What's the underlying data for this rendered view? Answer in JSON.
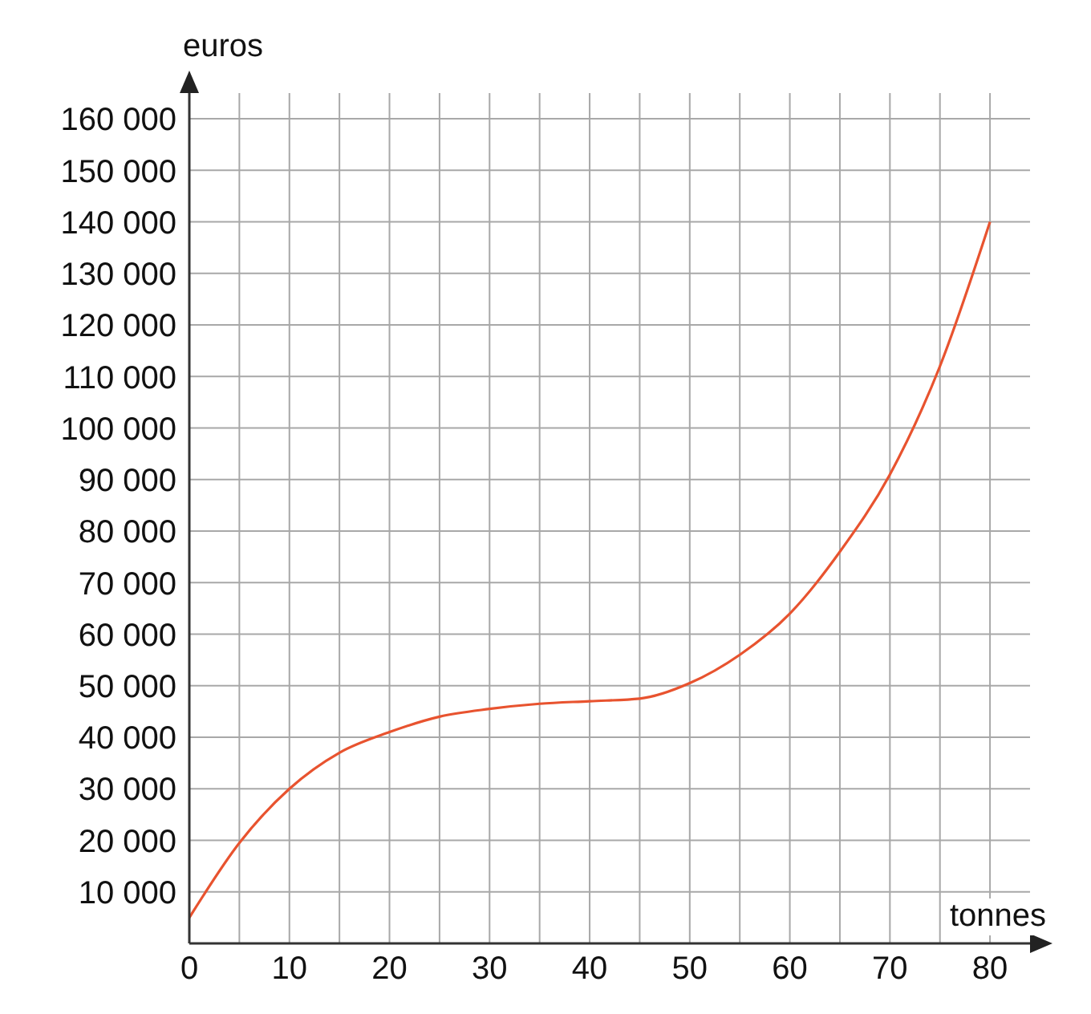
{
  "chart_data": {
    "type": "line",
    "xlabel": "tonnes",
    "ylabel": "euros",
    "x": [
      0,
      5,
      10,
      15,
      20,
      25,
      30,
      35,
      40,
      45,
      50,
      55,
      60,
      65,
      70,
      75,
      80
    ],
    "series": [
      {
        "color": "#e8532f",
        "values": [
          5000,
          19500,
          30000,
          37000,
          41000,
          44000,
          45500,
          46500,
          47000,
          47500,
          50500,
          56000,
          64000,
          76000,
          91000,
          112000,
          140000
        ]
      }
    ],
    "xlim": [
      0,
      84
    ],
    "ylim": [
      0,
      165000
    ],
    "xticks": [
      0,
      {
        "value": 5,
        "label": null
      },
      10,
      {
        "value": 15,
        "label": null
      },
      20,
      {
        "value": 25,
        "label": null
      },
      30,
      {
        "value": 35,
        "label": null
      },
      40,
      {
        "value": 45,
        "label": null
      },
      50,
      {
        "value": 55,
        "label": null
      },
      60,
      {
        "value": 65,
        "label": null
      },
      70,
      {
        "value": 75,
        "label": null
      },
      80
    ],
    "yticks": [
      {
        "value": 10000,
        "label": "10 000"
      },
      {
        "value": 20000,
        "label": "20 000"
      },
      {
        "value": 30000,
        "label": "30 000"
      },
      {
        "value": 40000,
        "label": "40 000"
      },
      {
        "value": 50000,
        "label": "50 000"
      },
      {
        "value": 60000,
        "label": "60 000"
      },
      {
        "value": 70000,
        "label": "70 000"
      },
      {
        "value": 80000,
        "label": "80 000"
      },
      {
        "value": 90000,
        "label": "90 000"
      },
      {
        "value": 100000,
        "label": "100 000"
      },
      {
        "value": 110000,
        "label": "110 000"
      },
      {
        "value": 120000,
        "label": "120 000"
      },
      {
        "value": 130000,
        "label": "130 000"
      },
      {
        "value": 140000,
        "label": "140 000"
      },
      {
        "value": 150000,
        "label": "150 000"
      },
      {
        "value": 160000,
        "label": "160 000"
      }
    ],
    "grid": true,
    "marker": "none",
    "line_style": "solid"
  }
}
